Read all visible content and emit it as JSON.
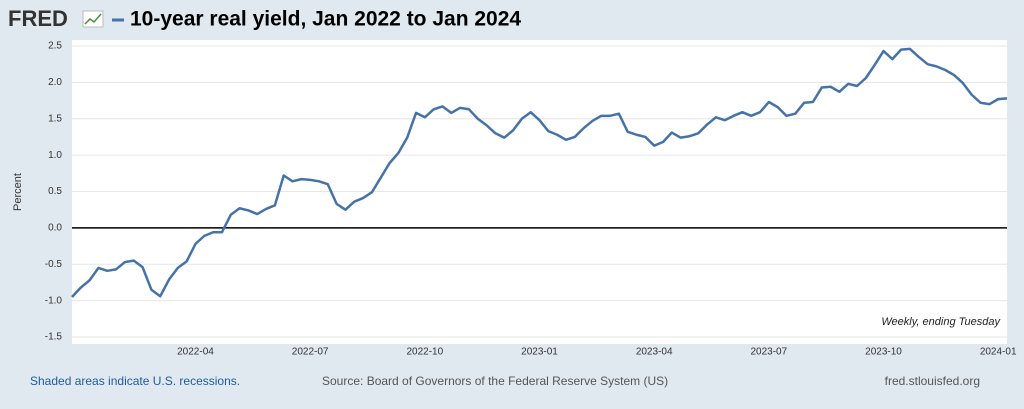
{
  "brand": "FRED",
  "chart_data": {
    "type": "line",
    "x": [
      "2022-01",
      "2022-01",
      "2022-01",
      "2022-01",
      "2022-02",
      "2022-02",
      "2022-02",
      "2022-02",
      "2022-03",
      "2022-03",
      "2022-03",
      "2022-03",
      "2022-03",
      "2022-04",
      "2022-04",
      "2022-04",
      "2022-04",
      "2022-05",
      "2022-05",
      "2022-05",
      "2022-05",
      "2022-05",
      "2022-06",
      "2022-06",
      "2022-06",
      "2022-06",
      "2022-07",
      "2022-07",
      "2022-07",
      "2022-07",
      "2022-08",
      "2022-08",
      "2022-08",
      "2022-08",
      "2022-08",
      "2022-09",
      "2022-09",
      "2022-09",
      "2022-09",
      "2022-10",
      "2022-10",
      "2022-10",
      "2022-10",
      "2022-11",
      "2022-11",
      "2022-11",
      "2022-11",
      "2022-11",
      "2022-12",
      "2022-12",
      "2022-12",
      "2022-12",
      "2023-01",
      "2023-01",
      "2023-01",
      "2023-01",
      "2023-01",
      "2023-02",
      "2023-02",
      "2023-02",
      "2023-02",
      "2023-03",
      "2023-03",
      "2023-03",
      "2023-03",
      "2023-04",
      "2023-04",
      "2023-04",
      "2023-04",
      "2023-05",
      "2023-05",
      "2023-05",
      "2023-05",
      "2023-05",
      "2023-06",
      "2023-06",
      "2023-06",
      "2023-06",
      "2023-07",
      "2023-07",
      "2023-07",
      "2023-07",
      "2023-08",
      "2023-08",
      "2023-08",
      "2023-08",
      "2023-08",
      "2023-09",
      "2023-09",
      "2023-09",
      "2023-09",
      "2023-10",
      "2023-10",
      "2023-10",
      "2023-10",
      "2023-10",
      "2023-11",
      "2023-11",
      "2023-11",
      "2023-11",
      "2023-12",
      "2023-12",
      "2023-12",
      "2023-12",
      "2024-01",
      "2024-01",
      "2024-01"
    ],
    "series": [
      {
        "name": "10-year real yield, Jan 2022 to Jan 2024",
        "color": "#4572a7",
        "values": [
          -0.95,
          -0.82,
          -0.72,
          -0.55,
          -0.59,
          -0.57,
          -0.47,
          -0.45,
          -0.54,
          -0.85,
          -0.94,
          -0.71,
          -0.55,
          -0.46,
          -0.22,
          -0.11,
          -0.06,
          -0.06,
          0.18,
          0.27,
          0.24,
          0.19,
          0.26,
          0.31,
          0.72,
          0.64,
          0.67,
          0.66,
          0.64,
          0.6,
          0.33,
          0.25,
          0.36,
          0.41,
          0.49,
          0.69,
          0.89,
          1.03,
          1.24,
          1.58,
          1.52,
          1.63,
          1.67,
          1.58,
          1.65,
          1.63,
          1.5,
          1.41,
          1.3,
          1.24,
          1.34,
          1.5,
          1.59,
          1.48,
          1.33,
          1.28,
          1.21,
          1.25,
          1.37,
          1.47,
          1.54,
          1.54,
          1.57,
          1.32,
          1.28,
          1.25,
          1.13,
          1.18,
          1.31,
          1.24,
          1.26,
          1.3,
          1.42,
          1.52,
          1.48,
          1.54,
          1.59,
          1.54,
          1.59,
          1.73,
          1.66,
          1.54,
          1.57,
          1.72,
          1.73,
          1.93,
          1.94,
          1.87,
          1.98,
          1.95,
          2.06,
          2.24,
          2.43,
          2.32,
          2.45,
          2.46,
          2.35,
          2.25,
          2.22,
          2.17,
          2.1,
          1.99,
          1.83,
          1.72,
          1.7,
          1.77,
          1.78
        ]
      }
    ],
    "xticks": [
      "2022-04",
      "2022-07",
      "2022-10",
      "2023-01",
      "2023-04",
      "2023-07",
      "2023-10",
      "2024-01"
    ],
    "ylim": [
      -1.5,
      2.5
    ],
    "yticks": [
      -1.5,
      {
        "value": -1,
        "label": "-1.0"
      },
      -0.5,
      {
        "value": 0,
        "label": "0.0"
      },
      0.5,
      {
        "value": 1,
        "label": "1.0"
      },
      1.5,
      {
        "value": 2,
        "label": "2.0"
      },
      2.5
    ],
    "y_label": "Percent",
    "grid": true,
    "note": "Weekly, ending Tuesday"
  },
  "footer": {
    "recessions": "Shaded areas indicate U.S. recessions.",
    "source": "Source: Board of Governors of the Federal Reserve System (US)",
    "site": "fred.stlouisfed.org"
  }
}
